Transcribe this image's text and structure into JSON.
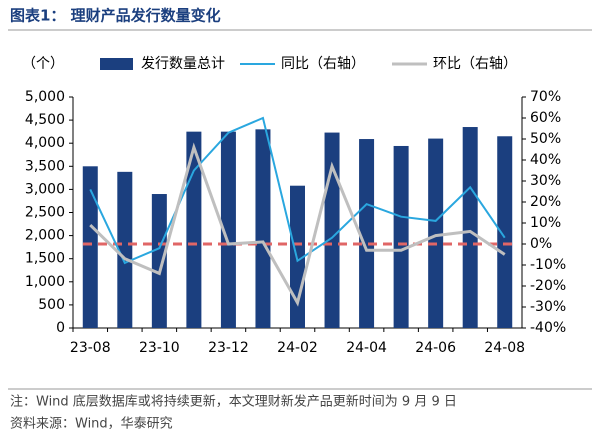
{
  "chart_data": {
    "type": "bar_line",
    "title": "图表1： 理财产品发行数量变化",
    "y_label": "（个）",
    "categories": [
      "23-08",
      null,
      "23-10",
      null,
      "23-12",
      null,
      "24-02",
      null,
      "24-04",
      null,
      "24-06",
      null,
      "24-08"
    ],
    "series": [
      {
        "name": "发行数量总计",
        "type": "bar",
        "color": "#1b3f7f",
        "values": [
          3500,
          3380,
          2900,
          4250,
          4250,
          4300,
          3080,
          4230,
          4090,
          3940,
          4100,
          4350,
          4150
        ]
      },
      {
        "name": "同比（右轴）",
        "type": "line",
        "axis": "y2",
        "color": "#2aa7df",
        "values": [
          26,
          -9,
          -2,
          35,
          53,
          60,
          -8,
          3,
          19,
          13,
          11,
          27,
          3
        ]
      },
      {
        "name": "环比（右轴）",
        "type": "line",
        "axis": "y2",
        "color": "#bfbfbf",
        "values": [
          9,
          -7,
          -14,
          46,
          0,
          1,
          -28,
          37,
          -3,
          -3,
          4,
          6,
          -5
        ]
      }
    ],
    "reference_line": {
      "value": 0,
      "axis": "y2",
      "color": "#e06666"
    },
    "ylim": [
      0,
      5000
    ],
    "yticks": [
      0,
      500,
      {
        "value": 1000,
        "label": "1,000"
      },
      {
        "value": 1500,
        "label": "1,500"
      },
      {
        "value": 2000,
        "label": "2,000"
      },
      {
        "value": 2500,
        "label": "2,500"
      },
      {
        "value": 3000,
        "label": "3,000"
      },
      {
        "value": 3500,
        "label": "3,500"
      },
      {
        "value": 4000,
        "label": "4,000"
      },
      {
        "value": 4500,
        "label": "4,500"
      },
      {
        "value": 5000,
        "label": "5,000"
      }
    ],
    "y2lim": [
      -40,
      70
    ],
    "y2ticks": [
      {
        "value": -40,
        "label": "-40%"
      },
      {
        "value": -30,
        "label": "-30%"
      },
      {
        "value": -20,
        "label": "-20%"
      },
      {
        "value": -10,
        "label": "-10%"
      },
      {
        "value": 0,
        "label": "0%"
      },
      {
        "value": 10,
        "label": "10%"
      },
      {
        "value": 20,
        "label": "20%"
      },
      {
        "value": 30,
        "label": "30%"
      },
      {
        "value": 40,
        "label": "40%"
      },
      {
        "value": 50,
        "label": "50%"
      },
      {
        "value": 60,
        "label": "60%"
      },
      {
        "value": 70,
        "label": "70%"
      }
    ],
    "note": "注：Wind 底层数据库或将持续更新，本文理财新发产品更新时间为 9 月 9 日",
    "source": "资料来源：Wind，华泰研究"
  }
}
